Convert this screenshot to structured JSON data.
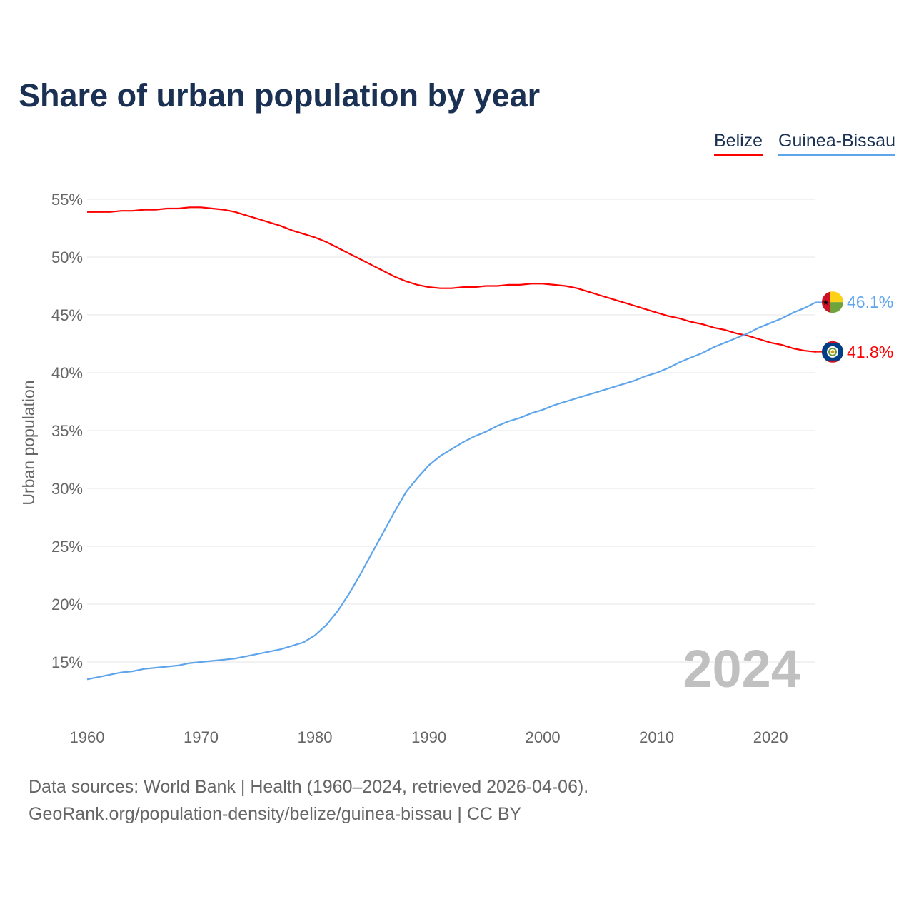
{
  "chart_data": {
    "type": "line",
    "title": "Share of urban population by year",
    "xlabel": "",
    "ylabel": "Urban population",
    "xlim": [
      1960,
      2024
    ],
    "ylim": [
      12,
      57
    ],
    "y_ticks": [
      15,
      20,
      25,
      30,
      35,
      40,
      45,
      50,
      55
    ],
    "y_tick_labels": [
      "15%",
      "20%",
      "25%",
      "30%",
      "35%",
      "40%",
      "45%",
      "50%",
      "55%"
    ],
    "x_ticks": [
      1960,
      1970,
      1980,
      1990,
      2000,
      2010,
      2020
    ],
    "x_tick_labels": [
      "1960",
      "1970",
      "1980",
      "1990",
      "2000",
      "2010",
      "2020"
    ],
    "grid": true,
    "legend_position": "top-right",
    "year_watermark": "2024",
    "x": [
      1960,
      1961,
      1962,
      1963,
      1964,
      1965,
      1966,
      1967,
      1968,
      1969,
      1970,
      1971,
      1972,
      1973,
      1974,
      1975,
      1976,
      1977,
      1978,
      1979,
      1980,
      1981,
      1982,
      1983,
      1984,
      1985,
      1986,
      1987,
      1988,
      1989,
      1990,
      1991,
      1992,
      1993,
      1994,
      1995,
      1996,
      1997,
      1998,
      1999,
      2000,
      2001,
      2002,
      2003,
      2004,
      2005,
      2006,
      2007,
      2008,
      2009,
      2010,
      2011,
      2012,
      2013,
      2014,
      2015,
      2016,
      2017,
      2018,
      2019,
      2020,
      2021,
      2022,
      2023,
      2024
    ],
    "series": [
      {
        "name": "Belize",
        "color": "#ff0000",
        "end_label": "41.8%",
        "values": [
          53.9,
          53.9,
          53.9,
          54.0,
          54.0,
          54.1,
          54.1,
          54.2,
          54.2,
          54.3,
          54.3,
          54.2,
          54.1,
          53.9,
          53.6,
          53.3,
          53.0,
          52.7,
          52.3,
          52.0,
          51.7,
          51.3,
          50.8,
          50.3,
          49.8,
          49.3,
          48.8,
          48.3,
          47.9,
          47.6,
          47.4,
          47.3,
          47.3,
          47.4,
          47.4,
          47.5,
          47.5,
          47.6,
          47.6,
          47.7,
          47.7,
          47.6,
          47.5,
          47.3,
          47.0,
          46.7,
          46.4,
          46.1,
          45.8,
          45.5,
          45.2,
          44.9,
          44.7,
          44.4,
          44.2,
          43.9,
          43.7,
          43.4,
          43.2,
          42.9,
          42.6,
          42.4,
          42.1,
          41.9,
          41.8
        ]
      },
      {
        "name": "Guinea-Bissau",
        "color": "#5ea5ec",
        "end_label": "46.1%",
        "values": [
          13.5,
          13.7,
          13.9,
          14.1,
          14.2,
          14.4,
          14.5,
          14.6,
          14.7,
          14.9,
          15.0,
          15.1,
          15.2,
          15.3,
          15.5,
          15.7,
          15.9,
          16.1,
          16.4,
          16.7,
          17.3,
          18.2,
          19.4,
          20.9,
          22.6,
          24.4,
          26.2,
          28.0,
          29.7,
          30.9,
          32.0,
          32.8,
          33.4,
          34.0,
          34.5,
          34.9,
          35.4,
          35.8,
          36.1,
          36.5,
          36.8,
          37.2,
          37.5,
          37.8,
          38.1,
          38.4,
          38.7,
          39.0,
          39.3,
          39.7,
          40.0,
          40.4,
          40.9,
          41.3,
          41.7,
          42.2,
          42.6,
          43.0,
          43.4,
          43.9,
          44.3,
          44.7,
          45.2,
          45.6,
          46.1
        ]
      }
    ]
  },
  "footer": {
    "line1": "Data sources: World Bank | Health (1960–2024, retrieved 2026-04-06).",
    "line2": "GeoRank.org/population-density/belize/guinea-bissau | CC BY"
  }
}
